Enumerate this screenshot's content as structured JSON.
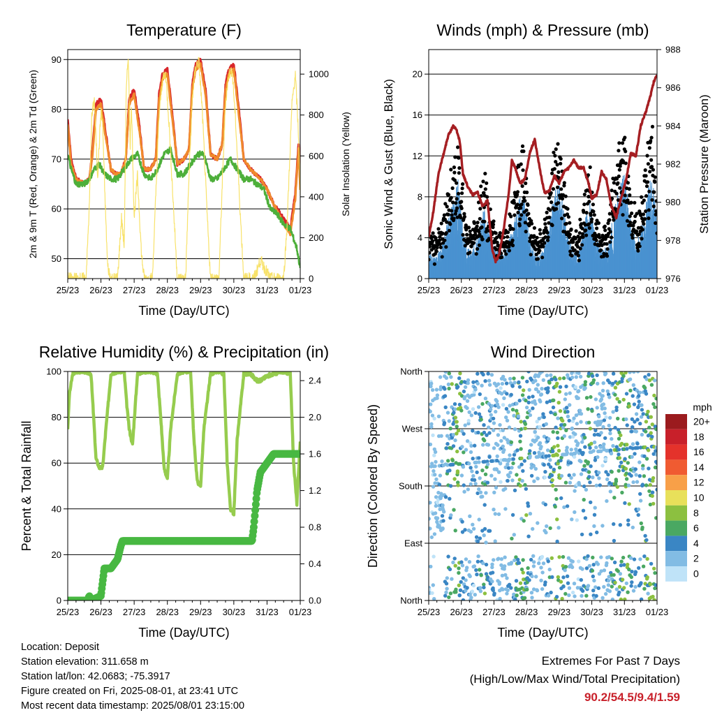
{
  "colors": {
    "temp2m": "#d8262b",
    "temp9m": "#f08a2c",
    "dew": "#4daf3a",
    "solar": "#f7df5a",
    "wind": "#4a92d0",
    "gust": "#000000",
    "pressure": "#a51e22",
    "rh": "#96cc4e",
    "precip": "#48b842",
    "extremes": "#c8202a"
  },
  "chart_data": [
    {
      "id": "temperature",
      "type": "line",
      "title": "Temperature (F)",
      "xlabel": "Time (Day/UTC)",
      "ylabel": "2m & 9m T (Red, Orange) & 2m Td (Green)",
      "y2label": "Solar Insolation (Yellow)",
      "x_ticks": [
        "25/23",
        "26/23",
        "27/23",
        "28/23",
        "29/23",
        "30/23",
        "31/23",
        "01/23"
      ],
      "xlim": [
        0,
        7
      ],
      "ylim": [
        46,
        92
      ],
      "y_ticks": [
        50,
        60,
        70,
        80,
        90
      ],
      "y2lim": [
        0,
        1120
      ],
      "y2_ticks": [
        0,
        200,
        400,
        600,
        800,
        1000
      ],
      "grid": "horizontal",
      "series": [
        {
          "key": "temp2m",
          "axis": "y",
          "x": [
            0,
            0.1,
            0.25,
            0.5,
            0.65,
            0.75,
            0.85,
            1.0,
            1.15,
            1.3,
            1.45,
            1.6,
            1.75,
            1.85,
            2.0,
            2.15,
            2.3,
            2.5,
            2.65,
            2.75,
            2.85,
            3.0,
            3.15,
            3.3,
            3.5,
            3.65,
            3.75,
            3.85,
            4.0,
            4.15,
            4.3,
            4.5,
            4.65,
            4.75,
            4.85,
            5.0,
            5.15,
            5.3,
            5.5,
            5.65,
            5.8,
            6.0,
            6.2,
            6.5,
            6.7,
            6.85,
            6.95,
            7.0
          ],
          "values": [
            78,
            70,
            66,
            65,
            66,
            72,
            81,
            82,
            75,
            68,
            67,
            67,
            70,
            82,
            84,
            77,
            68,
            68,
            70,
            83,
            87,
            88,
            79,
            69,
            70,
            72,
            85,
            89,
            90,
            84,
            71,
            70,
            73,
            85,
            88,
            89,
            80,
            70,
            68,
            67,
            66,
            64,
            61,
            58,
            56,
            63,
            73,
            65
          ]
        },
        {
          "key": "temp9m",
          "axis": "y",
          "x": [
            0,
            0.1,
            0.25,
            0.5,
            0.65,
            0.75,
            0.85,
            1.0,
            1.15,
            1.3,
            1.45,
            1.6,
            1.75,
            1.85,
            2.0,
            2.15,
            2.3,
            2.5,
            2.65,
            2.75,
            2.85,
            3.0,
            3.15,
            3.3,
            3.5,
            3.65,
            3.75,
            3.85,
            4.0,
            4.15,
            4.3,
            4.5,
            4.65,
            4.75,
            4.85,
            5.0,
            5.15,
            5.3,
            5.5,
            5.65,
            5.8,
            6.0,
            6.2,
            6.5,
            6.7,
            6.85,
            6.95,
            7.0
          ],
          "values": [
            77,
            69,
            66,
            65,
            66,
            71,
            80,
            81,
            74,
            68,
            67,
            67,
            70,
            81,
            83,
            76,
            68,
            68,
            70,
            82,
            86,
            87,
            78,
            69,
            70,
            72,
            84,
            88,
            89,
            83,
            71,
            70,
            73,
            84,
            87,
            88,
            79,
            70,
            68,
            67,
            66,
            64,
            61,
            57,
            55,
            62,
            72,
            64
          ]
        },
        {
          "key": "dew",
          "axis": "y",
          "x": [
            0,
            0.1,
            0.25,
            0.5,
            0.65,
            0.8,
            0.95,
            1.1,
            1.3,
            1.5,
            1.7,
            1.9,
            2.1,
            2.3,
            2.5,
            2.7,
            2.9,
            3.1,
            3.3,
            3.5,
            3.7,
            3.9,
            4.1,
            4.3,
            4.5,
            4.7,
            4.9,
            5.1,
            5.3,
            5.5,
            5.7,
            5.9,
            6.1,
            6.3,
            6.5,
            6.7,
            6.9,
            7.0
          ],
          "values": [
            71,
            68,
            65,
            65,
            66,
            68,
            69,
            67,
            66,
            66,
            68,
            70,
            71,
            67,
            66,
            68,
            71,
            72,
            67,
            67,
            69,
            71,
            71,
            66,
            66,
            68,
            70,
            68,
            66,
            66,
            65,
            64,
            60,
            59,
            57,
            56,
            52,
            48
          ]
        },
        {
          "key": "solar",
          "axis": "y2",
          "x": [
            0,
            0.55,
            0.65,
            0.72,
            0.8,
            0.9,
            1.0,
            1.05,
            1.12,
            1.2,
            1.3,
            1.5,
            1.62,
            1.7,
            1.76,
            1.82,
            1.88,
            1.92,
            2.0,
            2.1,
            2.22,
            2.3,
            2.55,
            2.65,
            2.75,
            2.85,
            2.95,
            3.05,
            3.2,
            3.3,
            3.55,
            3.65,
            3.75,
            3.85,
            3.95,
            4.05,
            4.2,
            4.3,
            4.55,
            4.65,
            4.75,
            4.85,
            4.95,
            5.05,
            5.2,
            5.3,
            5.6,
            5.7,
            5.8,
            5.9,
            6.0,
            6.1,
            6.5,
            6.6,
            6.75,
            6.85,
            6.95,
            7.0
          ],
          "values": [
            0,
            0,
            350,
            780,
            880,
            500,
            820,
            760,
            400,
            60,
            0,
            0,
            300,
            150,
            900,
            1100,
            650,
            850,
            300,
            500,
            120,
            0,
            0,
            400,
            800,
            970,
            1000,
            760,
            300,
            0,
            0,
            500,
            880,
            1040,
            1060,
            820,
            300,
            0,
            0,
            450,
            860,
            1000,
            1020,
            780,
            300,
            0,
            0,
            40,
            90,
            60,
            30,
            0,
            0,
            250,
            850,
            1000,
            700,
            400
          ]
        }
      ]
    },
    {
      "id": "winds",
      "type": "line",
      "title": "Winds (mph) & Pressure (mb)",
      "xlabel": "Time (Day/UTC)",
      "ylabel": "Sonic Wind & Gust (Blue, Black)",
      "y2label": "Station Pressure (Maroon)",
      "x_ticks": [
        "25/23",
        "26/23",
        "27/23",
        "28/23",
        "29/23",
        "30/23",
        "31/23",
        "01/23"
      ],
      "xlim": [
        0,
        7
      ],
      "ylim": [
        0,
        22.4
      ],
      "y_ticks": [
        0,
        4,
        8,
        12,
        16,
        20
      ],
      "y2lim": [
        976,
        988
      ],
      "y2_ticks": [
        976,
        978,
        980,
        982,
        984,
        986,
        988
      ],
      "grid": "horizontal",
      "series": [
        {
          "key": "wind_envelope",
          "axis": "y",
          "x": [
            0,
            0.2,
            0.4,
            0.6,
            0.75,
            0.9,
            1.0,
            1.15,
            1.3,
            1.5,
            1.7,
            1.85,
            2.0,
            2.2,
            2.4,
            2.6,
            2.75,
            2.9,
            3.1,
            3.3,
            3.5,
            3.7,
            3.85,
            4.0,
            4.2,
            4.4,
            4.6,
            4.8,
            4.95,
            5.1,
            5.3,
            5.5,
            5.7,
            5.85,
            6.0,
            6.2,
            6.4,
            6.55,
            6.7,
            6.85,
            7.0
          ],
          "values": [
            2.5,
            2.0,
            3.0,
            5.5,
            7.5,
            9.0,
            6.0,
            3.0,
            2.5,
            4.0,
            6.5,
            4.5,
            3.0,
            2.5,
            3.0,
            5.0,
            7.0,
            8.0,
            4.0,
            2.0,
            2.5,
            5.0,
            8.0,
            9.0,
            5.0,
            2.5,
            2.5,
            5.5,
            7.0,
            4.0,
            2.5,
            3.0,
            6.5,
            8.5,
            9.5,
            5.0,
            3.5,
            5.0,
            8.0,
            9.5,
            5.0
          ]
        },
        {
          "key": "pressure",
          "axis": "y2",
          "x": [
            0,
            0.15,
            0.3,
            0.45,
            0.6,
            0.75,
            0.85,
            0.95,
            1.05,
            1.2,
            1.35,
            1.5,
            1.65,
            1.8,
            1.95,
            2.05,
            2.15,
            2.3,
            2.45,
            2.55,
            2.65,
            2.8,
            2.95,
            3.1,
            3.25,
            3.4,
            3.55,
            3.7,
            3.85,
            4.0,
            4.15,
            4.3,
            4.45,
            4.6,
            4.75,
            4.9,
            5.0,
            5.15,
            5.3,
            5.45,
            5.6,
            5.75,
            5.9,
            6.05,
            6.2,
            6.35,
            6.5,
            6.65,
            6.8,
            6.9,
            7.0
          ],
          "values": [
            978.2,
            979.6,
            981.5,
            982.5,
            983.5,
            984.0,
            983.8,
            983.2,
            981.5,
            980.8,
            980.4,
            980.5,
            979.8,
            980.1,
            977.5,
            976.9,
            977.2,
            978.6,
            980.4,
            982.2,
            981.8,
            981.0,
            981.2,
            982.6,
            983.3,
            981.8,
            980.5,
            980.6,
            981.4,
            981.0,
            981.6,
            981.8,
            982.2,
            981.8,
            981.8,
            981.0,
            980.2,
            980.4,
            981.6,
            981.2,
            979.8,
            979.2,
            980.2,
            981.2,
            982.6,
            982.4,
            984.0,
            984.7,
            985.6,
            986.3,
            986.7
          ]
        }
      ]
    },
    {
      "id": "humidity",
      "type": "line",
      "title": "Relative Humidity (%) & Precipitation (in)",
      "xlabel": "Time (Day/UTC)",
      "ylabel": "Percent & Total Rainfall",
      "x_ticks": [
        "25/23",
        "26/23",
        "27/23",
        "28/23",
        "29/23",
        "30/23",
        "31/23",
        "01/23"
      ],
      "xlim": [
        0,
        7
      ],
      "ylim": [
        0,
        100
      ],
      "y_ticks": [
        0,
        20,
        40,
        60,
        80,
        100
      ],
      "y2lim": [
        0,
        2.5
      ],
      "y2_ticks": [
        0.0,
        0.4,
        0.8,
        1.2,
        1.6,
        2.0,
        2.4
      ],
      "grid": "horizontal",
      "series": [
        {
          "key": "rh",
          "axis": "y",
          "x": [
            0,
            0.05,
            0.15,
            0.3,
            0.5,
            0.7,
            0.78,
            0.85,
            0.95,
            1.05,
            1.15,
            1.3,
            1.5,
            1.7,
            1.78,
            1.85,
            1.95,
            2.1,
            2.3,
            2.5,
            2.7,
            2.8,
            2.9,
            3.0,
            3.1,
            3.3,
            3.5,
            3.7,
            3.8,
            3.9,
            4.0,
            4.1,
            4.3,
            4.5,
            4.7,
            4.8,
            4.9,
            5.0,
            5.1,
            5.3,
            5.5,
            5.7,
            5.8,
            5.9,
            6.0,
            6.2,
            6.5,
            6.7,
            6.8,
            6.9,
            7.0
          ],
          "values": [
            75,
            90,
            99,
            100,
            100,
            99,
            80,
            62,
            58,
            58,
            75,
            99,
            100,
            100,
            85,
            75,
            68,
            99,
            100,
            100,
            99,
            80,
            58,
            53,
            75,
            99,
            100,
            100,
            70,
            52,
            50,
            75,
            99,
            100,
            99,
            60,
            40,
            38,
            70,
            99,
            99,
            96,
            96,
            97,
            98,
            99,
            100,
            99,
            60,
            42,
            70
          ]
        },
        {
          "key": "precip",
          "axis": "y2",
          "x": [
            0,
            0.6,
            0.65,
            0.7,
            1.0,
            1.05,
            1.1,
            1.15,
            1.3,
            1.4,
            1.5,
            1.6,
            1.65,
            1.7,
            3.5,
            4.7,
            5.4,
            5.55,
            5.6,
            5.65,
            5.7,
            5.8,
            6.0,
            6.2,
            7.0
          ],
          "values": [
            0,
            0,
            0.05,
            0,
            0.05,
            0.2,
            0.35,
            0.35,
            0.35,
            0.4,
            0.45,
            0.6,
            0.65,
            0.65,
            0.65,
            0.65,
            0.65,
            0.65,
            0.8,
            1.0,
            1.2,
            1.4,
            1.5,
            1.6,
            1.6
          ]
        }
      ]
    },
    {
      "id": "direction",
      "type": "scatter",
      "title": "Wind Direction",
      "xlabel": "Time (Day/UTC)",
      "ylabel": "Direction (Colored By Speed)",
      "x_ticks": [
        "25/23",
        "26/23",
        "27/23",
        "28/23",
        "29/23",
        "30/23",
        "31/23",
        "01/23"
      ],
      "xlim": [
        0,
        7
      ],
      "ylim": [
        0,
        360
      ],
      "y_ticks": [
        "North",
        "East",
        "South",
        "West",
        "North"
      ],
      "grid": "horizontal",
      "legend": {
        "title": "mph",
        "position": "right",
        "labels": [
          "20+",
          "18",
          "16",
          "14",
          "12",
          "10",
          "8",
          "6",
          "4",
          "2",
          "0"
        ],
        "colors": [
          "#9b1b1e",
          "#c8202a",
          "#e4322b",
          "#f05b31",
          "#f8a048",
          "#e8e05a",
          "#8cc040",
          "#4aa862",
          "#3a86c4",
          "#82bce4",
          "#bfe3f8"
        ]
      }
    }
  ],
  "info": {
    "location": "Location: Deposit",
    "elevation": "Station elevation: 311.658 m",
    "latlon": "Station lat/lon: 42.0683; -75.3917",
    "created": "Figure created on Fri, 2025-08-01, at 23:41 UTC",
    "recent": "Most recent data timestamp: 2025/08/01 23:15:00"
  },
  "extremes": {
    "title": "Extremes For Past 7 Days",
    "subtitle": "(High/Low/Max Wind/Total Precipitation)",
    "values": "90.2/54.5/9.4/1.59"
  }
}
